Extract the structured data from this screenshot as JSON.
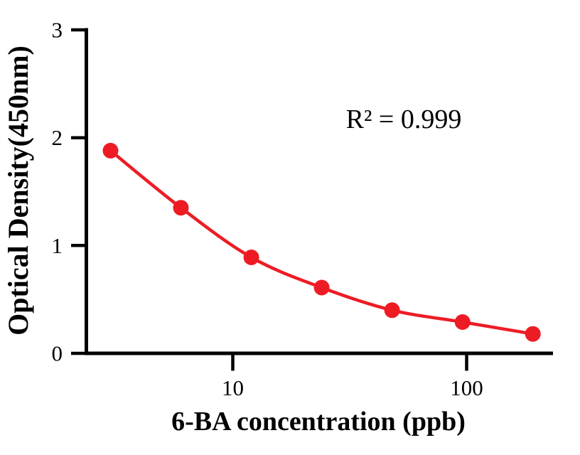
{
  "figure": {
    "background_color": "#ffffff",
    "text_color": "#000000"
  },
  "chart_data": {
    "type": "scatter",
    "curve": "smooth fitted line through points",
    "title": "",
    "xlabel": "6-BA concentration (ppb)",
    "ylabel": "Optical Density(450nm)",
    "annotation": "R² = 0.999",
    "r_squared": 0.999,
    "x_scale": "log10",
    "y_scale": "linear",
    "x": [
      3,
      6,
      12,
      24,
      48,
      96,
      192
    ],
    "y": [
      1.88,
      1.35,
      0.89,
      0.61,
      0.4,
      0.29,
      0.18
    ],
    "x_ticks": [
      {
        "value": 10,
        "label": "10"
      },
      {
        "value": 100,
        "label": "100"
      }
    ],
    "y_ticks": [
      {
        "value": 0,
        "label": "0"
      },
      {
        "value": 1,
        "label": "1"
      },
      {
        "value": 2,
        "label": "2"
      },
      {
        "value": 3,
        "label": "3"
      }
    ],
    "ylim": [
      0,
      3
    ],
    "xlim": [
      2.3,
      235
    ],
    "grid": false,
    "legend": "none",
    "marker_color": "#ed1c24",
    "line_color": "#ed1c24",
    "axis_color": "#000000"
  }
}
